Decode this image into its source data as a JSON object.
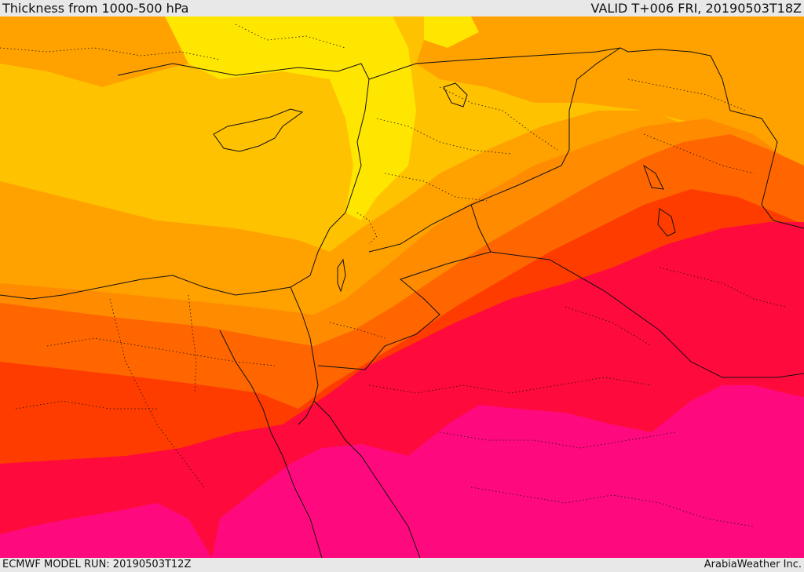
{
  "header": {
    "title": "Thickness from 1000-500 hPa",
    "valid": "VALID T+006 FRI, 20190503T18Z"
  },
  "footer": {
    "model_run": "ECMWF MODEL RUN: 20190503T12Z",
    "credit": "ArabiaWeather Inc."
  },
  "map": {
    "field": "1000-500 hPa thickness",
    "color_bands": [
      "#ffe600",
      "#ffc200",
      "#ffa200",
      "#ff8c00",
      "#ff6600",
      "#ff3c00",
      "#ff0a3c",
      "#ff0a7e"
    ],
    "boundary_color": "#111111"
  }
}
